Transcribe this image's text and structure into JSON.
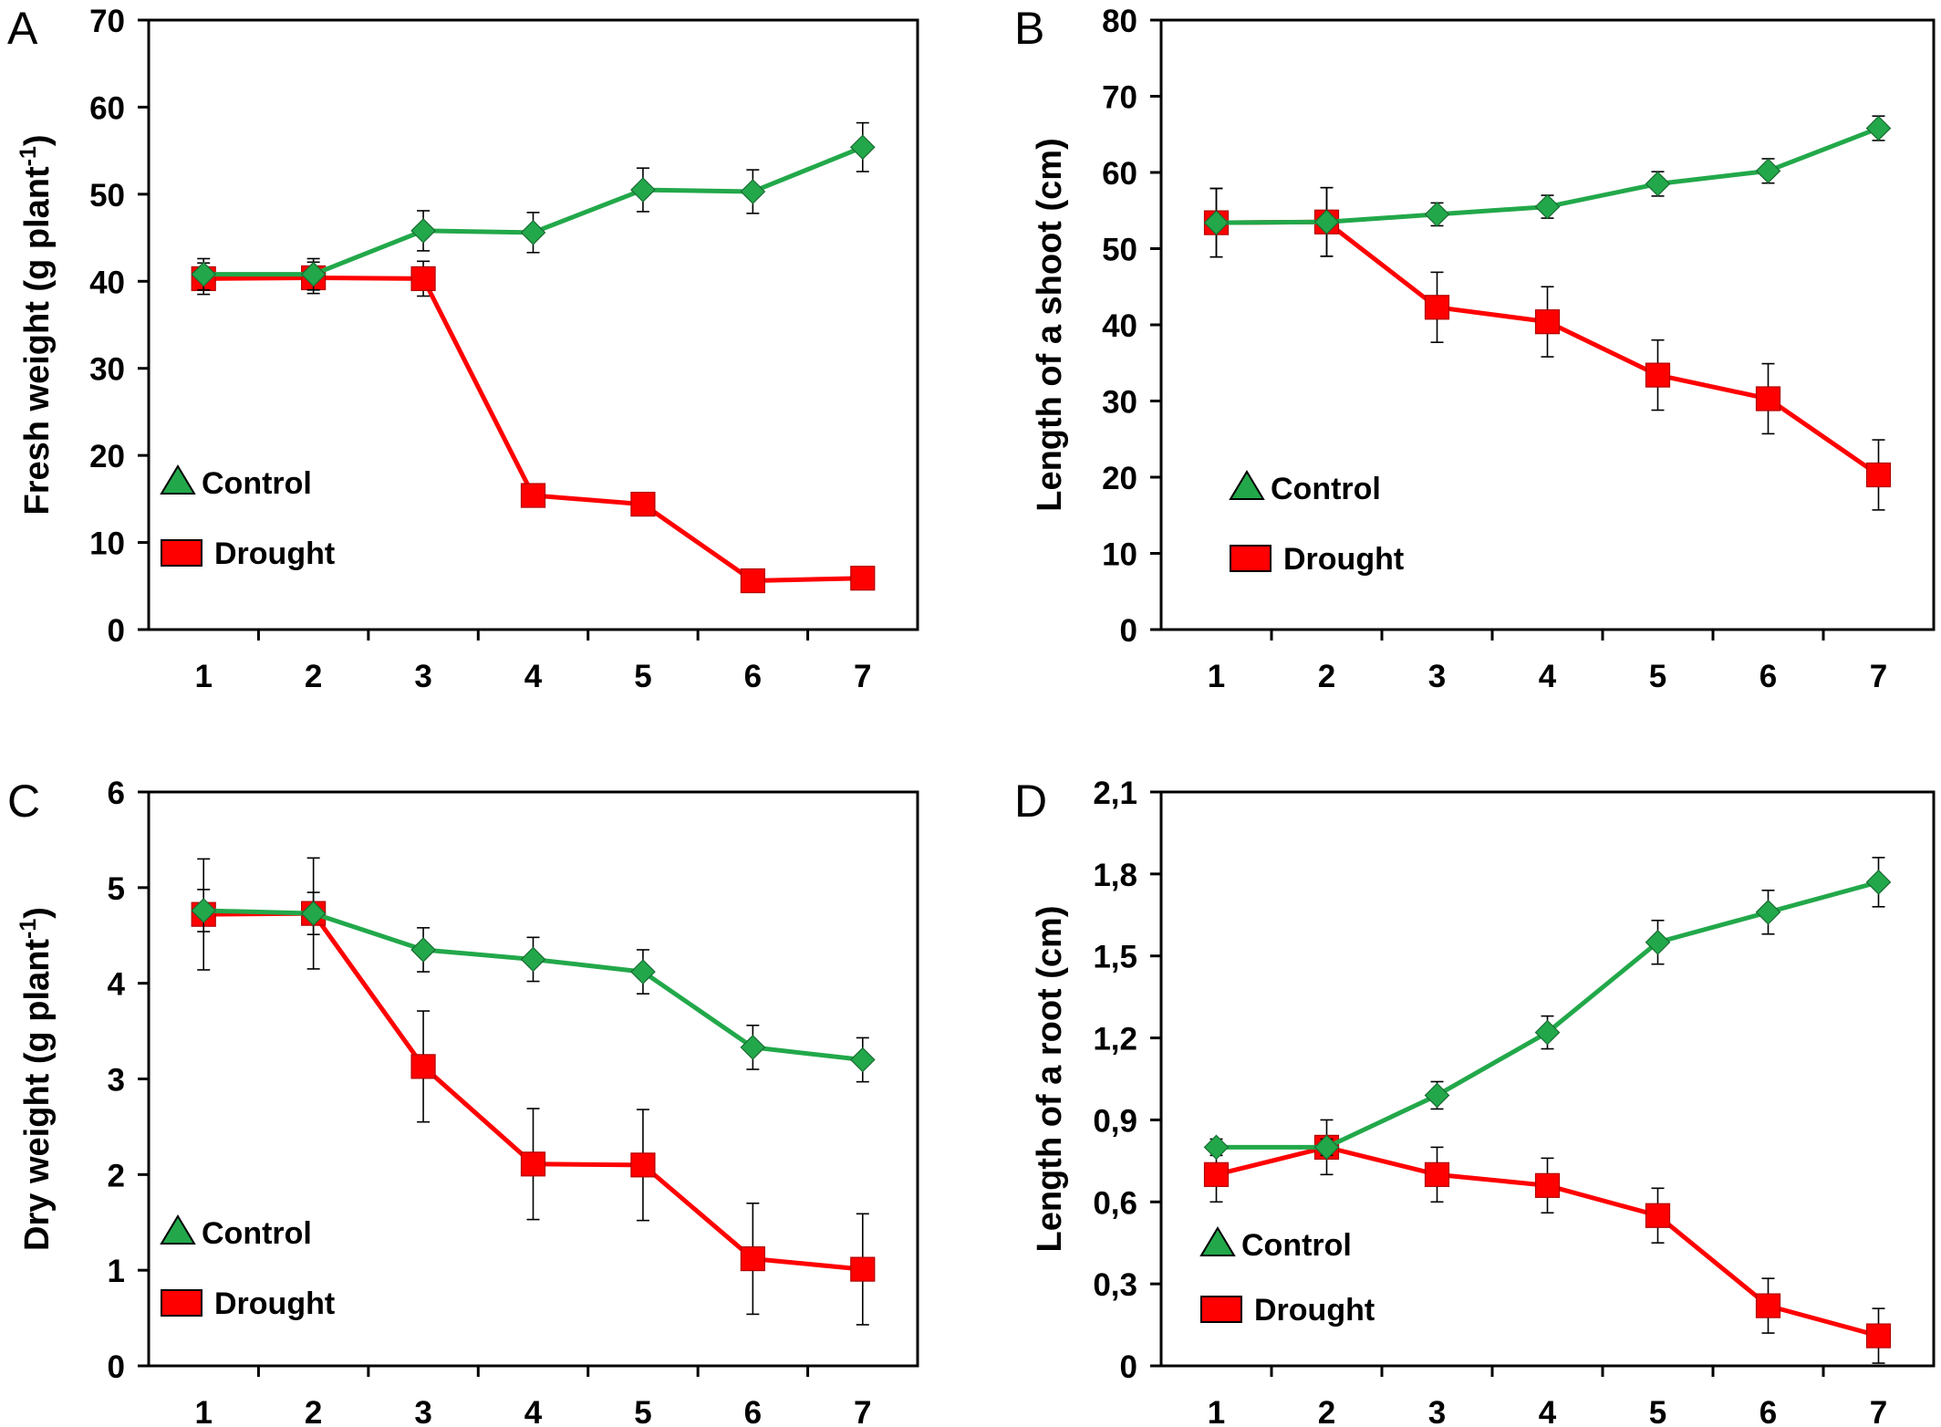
{
  "colors": {
    "control": "#22a84a",
    "drought": "#ff0000",
    "axis": "#000000"
  },
  "chart_data": [
    {
      "type": "line",
      "panel_label": "A",
      "ylabel_main": "Fresh weight (g plant",
      "ylabel_sup": "-1",
      "ylabel_end": ")",
      "categories": [
        "1",
        "2",
        "3",
        "4",
        "5",
        "6",
        "7"
      ],
      "ylim": [
        0,
        70
      ],
      "yticks": [
        0,
        10,
        20,
        30,
        40,
        50,
        60,
        70
      ],
      "ytick_labels": [
        "0",
        "10",
        "20",
        "30",
        "40",
        "50",
        "60",
        "70"
      ],
      "grid": false,
      "legend_position": "bottom-left",
      "series": [
        {
          "name": "Control",
          "marker": "diamond",
          "values": [
            40.8,
            40.8,
            45.8,
            45.6,
            50.5,
            50.3,
            55.4
          ],
          "errors": [
            1.8,
            1.8,
            2.3,
            2.3,
            2.5,
            2.5,
            2.8
          ]
        },
        {
          "name": "Drought",
          "marker": "square",
          "values": [
            40.3,
            40.4,
            40.3,
            15.4,
            14.4,
            5.6,
            5.9
          ],
          "errors": [
            1.8,
            1.8,
            2.0,
            0,
            0,
            0,
            0
          ]
        }
      ]
    },
    {
      "type": "line",
      "panel_label": "B",
      "ylabel_main": "Length of a shoot (cm)",
      "ylabel_sup": "",
      "ylabel_end": "",
      "categories": [
        "1",
        "2",
        "3",
        "4",
        "5",
        "6",
        "7"
      ],
      "ylim": [
        0,
        80
      ],
      "yticks": [
        0,
        10,
        20,
        30,
        40,
        50,
        60,
        70,
        80
      ],
      "ytick_labels": [
        "0",
        "10",
        "20",
        "30",
        "40",
        "50",
        "60",
        "70",
        "80"
      ],
      "grid": false,
      "legend_position": "bottom-left",
      "series": [
        {
          "name": "Control",
          "marker": "diamond",
          "values": [
            53.4,
            53.5,
            54.5,
            55.5,
            58.5,
            60.2,
            65.8
          ],
          "errors": [
            4.5,
            4.5,
            1.5,
            1.5,
            1.6,
            1.6,
            1.6
          ]
        },
        {
          "name": "Drought",
          "marker": "square",
          "values": [
            53.4,
            53.5,
            42.3,
            40.4,
            33.4,
            30.3,
            20.3
          ],
          "errors": [
            4.5,
            4.5,
            4.6,
            4.6,
            4.6,
            4.6,
            4.6
          ]
        }
      ]
    },
    {
      "type": "line",
      "panel_label": "C",
      "ylabel_main": "Dry weight (g plant",
      "ylabel_sup": "-1",
      "ylabel_end": ")",
      "categories": [
        "1",
        "2",
        "3",
        "4",
        "5",
        "6",
        "7"
      ],
      "ylim": [
        0,
        6
      ],
      "yticks": [
        0,
        1,
        2,
        3,
        4,
        5,
        6
      ],
      "ytick_labels": [
        "0",
        "1",
        "2",
        "3",
        "4",
        "5",
        "6"
      ],
      "grid": false,
      "legend_position": "bottom-left",
      "series": [
        {
          "name": "Control",
          "marker": "diamond",
          "values": [
            4.76,
            4.73,
            4.35,
            4.25,
            4.12,
            3.33,
            3.2
          ],
          "errors": [
            0.22,
            0.22,
            0.23,
            0.23,
            0.23,
            0.23,
            0.23
          ]
        },
        {
          "name": "Drought",
          "marker": "square",
          "values": [
            4.72,
            4.73,
            3.13,
            2.11,
            2.1,
            1.12,
            1.01
          ],
          "errors": [
            0.58,
            0.58,
            0.58,
            0.58,
            0.58,
            0.58,
            0.58
          ]
        }
      ]
    },
    {
      "type": "line",
      "panel_label": "D",
      "ylabel_main": "Length of a root  (cm)",
      "ylabel_sup": "",
      "ylabel_end": "",
      "categories": [
        "1",
        "2",
        "3",
        "4",
        "5",
        "6",
        "7"
      ],
      "ylim": [
        0,
        2.1
      ],
      "yticks": [
        0,
        0.3,
        0.6,
        0.9,
        1.2,
        1.5,
        1.8,
        2.1
      ],
      "ytick_labels": [
        "0",
        "0,3",
        "0,6",
        "0,9",
        "1,2",
        "1,5",
        "1,8",
        "2,1"
      ],
      "grid": false,
      "legend_position": "bottom-left",
      "series": [
        {
          "name": "Control",
          "marker": "diamond",
          "values": [
            0.8,
            0.8,
            0.99,
            1.22,
            1.55,
            1.66,
            1.77
          ],
          "errors": [
            0.03,
            0.03,
            0.05,
            0.06,
            0.08,
            0.08,
            0.09
          ]
        },
        {
          "name": "Drought",
          "marker": "square",
          "values": [
            0.7,
            0.8,
            0.7,
            0.66,
            0.55,
            0.22,
            0.11
          ],
          "errors": [
            0.1,
            0.1,
            0.1,
            0.1,
            0.1,
            0.1,
            0.1
          ]
        }
      ]
    }
  ]
}
